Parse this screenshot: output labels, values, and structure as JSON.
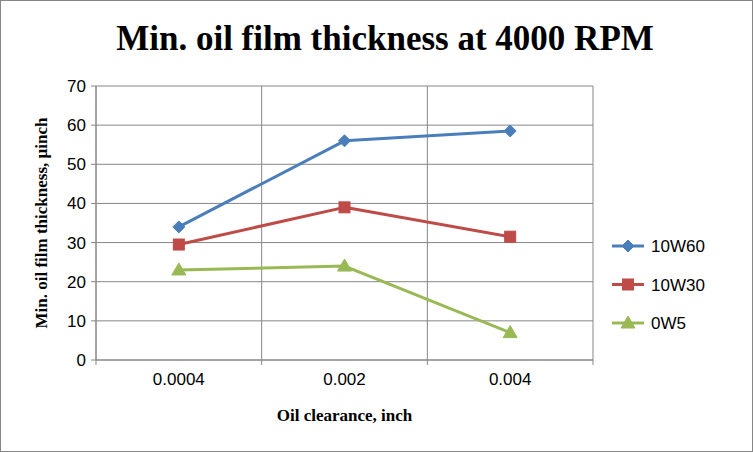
{
  "chart_data": {
    "type": "line",
    "title": "Min. oil film thickness at 4000 RPM",
    "x_label": "Oil clearance, inch",
    "y_label": "Min. oil film thickness, µinch",
    "categories": [
      "0.0004",
      "0.002",
      "0.004"
    ],
    "series": [
      {
        "name": "10W60",
        "color": "#4a7ebb",
        "marker": "diamond",
        "values": [
          34,
          56,
          58.5
        ]
      },
      {
        "name": "10W30",
        "color": "#be4b48",
        "marker": "square",
        "values": [
          29.5,
          39,
          31.5
        ]
      },
      {
        "name": "0W5",
        "color": "#98b954",
        "marker": "triangle",
        "values": [
          23,
          24,
          7
        ]
      }
    ],
    "ylim": [
      0,
      70
    ],
    "yticks": [
      0,
      10,
      20,
      30,
      40,
      50,
      60,
      70
    ],
    "grid": true,
    "legend": "right"
  }
}
